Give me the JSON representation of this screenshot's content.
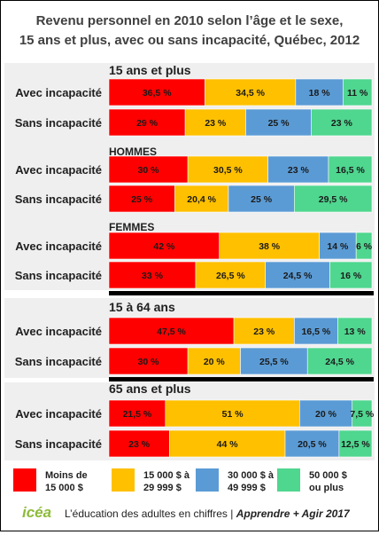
{
  "title_line1": "Revenu personnel en 2010 selon l’âge et le sexe,",
  "title_line2": "15 ans et plus, avec ou sans incapacité, Québec, 2012",
  "colors": {
    "lt15k": "#ff0000",
    "b15_30k": "#ffc000",
    "b30_50k": "#5b9bd5",
    "ge50k": "#4fd68f",
    "panel_bg": "#efefef"
  },
  "legend": [
    {
      "key": "lt15k",
      "line1": "Moins de",
      "line2": "15 000 $"
    },
    {
      "key": "b15_30k",
      "line1": "15 000 $ à",
      "line2": "29 999 $"
    },
    {
      "key": "b30_50k",
      "line1": "30 000 $ à",
      "line2": "49 999 $"
    },
    {
      "key": "ge50k",
      "line1": "50 000 $",
      "line2": "ou plus"
    }
  ],
  "footer": {
    "logo": "icéa",
    "text": "L’éducation des adultes en chiffres | ",
    "text_italic": "Apprendre + Agir 2017"
  },
  "chart_data": {
    "type": "bar",
    "orientation": "horizontal",
    "stacked": true,
    "normalized_percent": true,
    "title": "Revenu personnel en 2010 selon l’âge et le sexe, 15 ans et plus, avec ou sans incapacité, Québec, 2012",
    "series_keys": [
      "lt15k",
      "b15_30k",
      "b30_50k",
      "ge50k"
    ],
    "series_names": [
      "Moins de 15 000 $",
      "15 000 $ à 29 999 $",
      "30 000 $ à 49 999 $",
      "50 000 $ ou plus"
    ],
    "groups": [
      {
        "label": "15 ans et plus",
        "rows": [
          {
            "label": "Avec incapacité",
            "values": [
              36.5,
              34.5,
              18,
              11
            ],
            "labels": [
              "36,5 %",
              "34,5 %",
              "18 %",
              "11 %"
            ]
          },
          {
            "label": "Sans incapacité",
            "values": [
              29,
              23,
              25,
              23
            ],
            "labels": [
              "29 %",
              "23 %",
              "25 %",
              "23 %"
            ]
          }
        ]
      },
      {
        "label": "HOMMES",
        "rows": [
          {
            "label": "Avec incapacité",
            "values": [
              30,
              30.5,
              23,
              16.5
            ],
            "labels": [
              "30 %",
              "30,5 %",
              "23 %",
              "16,5 %"
            ]
          },
          {
            "label": "Sans incapacité",
            "values": [
              25,
              20.4,
              25,
              29.5
            ],
            "labels": [
              "25 %",
              "20,4 %",
              "25 %",
              "29,5 %"
            ]
          }
        ]
      },
      {
        "label": "FEMMES",
        "rows": [
          {
            "label": "Avec incapacité",
            "values": [
              42,
              38,
              14,
              6
            ],
            "labels": [
              "42 %",
              "38 %",
              "14 %",
              "6 %"
            ]
          },
          {
            "label": "Sans incapacité",
            "values": [
              33,
              26.5,
              24.5,
              16
            ],
            "labels": [
              "33 %",
              "26,5 %",
              "24,5 %",
              "16 %"
            ]
          }
        ]
      },
      {
        "label": "15 à 64 ans",
        "rows": [
          {
            "label": "Avec incapacité",
            "values": [
              47.5,
              23,
              16.5,
              13
            ],
            "labels": [
              "47,5 %",
              "23 %",
              "16,5 %",
              "13 %"
            ]
          },
          {
            "label": "Sans incapacité",
            "values": [
              30,
              20,
              25.5,
              24.5
            ],
            "labels": [
              "30 %",
              "20 %",
              "25,5 %",
              "24,5 %"
            ]
          }
        ]
      },
      {
        "label": "65 ans et plus",
        "rows": [
          {
            "label": "Avec incapacité",
            "values": [
              21.5,
              51,
              20,
              7.5
            ],
            "labels": [
              "21,5 %",
              "51 %",
              "20 %",
              "7,5 %"
            ]
          },
          {
            "label": "Sans incapacité",
            "values": [
              23,
              44,
              20.5,
              12.5
            ],
            "labels": [
              "23 %",
              "44 %",
              "20,5 %",
              "12,5 %"
            ]
          }
        ]
      }
    ]
  }
}
